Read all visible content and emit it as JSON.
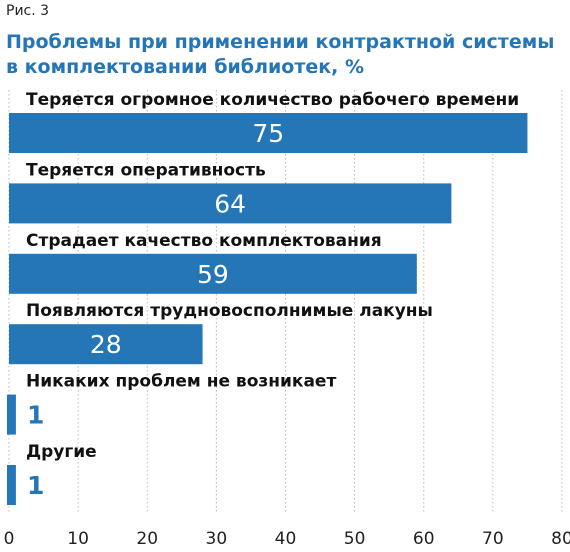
{
  "figure_label": "Рис. 3",
  "colors": {
    "bar": "#2576b7",
    "title": "#2576b7",
    "text": "#111111",
    "grid": "#b9b9b9"
  },
  "chart_data": {
    "type": "bar",
    "orientation": "horizontal",
    "title_lines": [
      "Проблемы при применении контрактной системы",
      "в комплектовании библиотек, %"
    ],
    "categories": [
      "Теряется огромное количество рабочего времени",
      "Теряется оперативность",
      "Страдает качество комплектования",
      "Появляются трудновосполнимые лакуны",
      "Никаких проблем не возникает",
      "Другие"
    ],
    "values": [
      75,
      64,
      59,
      28,
      1,
      1
    ],
    "value_labels": [
      "75",
      "64",
      "59",
      "28",
      "1",
      "1"
    ],
    "xlim": [
      0,
      80
    ],
    "xticks": [
      0,
      10,
      20,
      30,
      40,
      50,
      60,
      70,
      80
    ],
    "xtick_labels": [
      "0",
      "10",
      "20",
      "30",
      "40",
      "50",
      "60",
      "70",
      "80"
    ],
    "grid": "vertical",
    "legend": "none"
  }
}
